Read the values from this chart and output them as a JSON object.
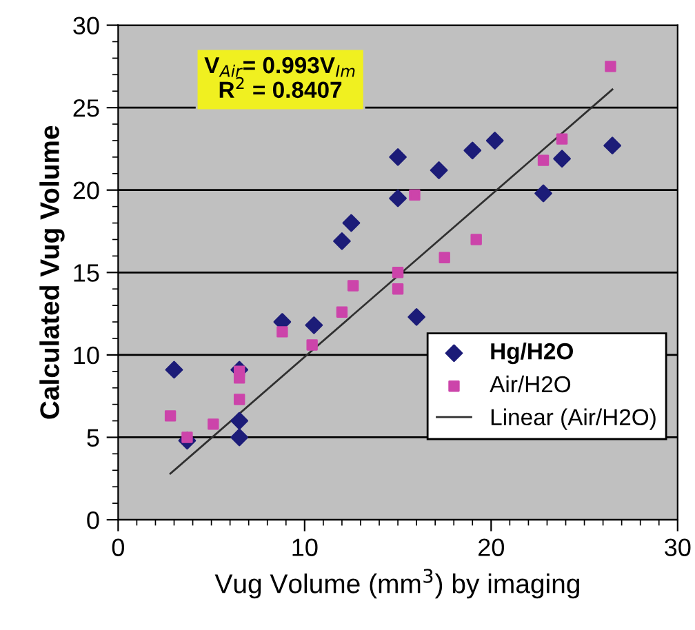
{
  "chart_data": {
    "type": "scatter",
    "xlabel": "Vug Volume (mm$^{3}$) by imaging",
    "ylabel": "Calculated Vug Volume",
    "xlim": [
      0,
      30
    ],
    "xticks": [
      0,
      10,
      20,
      30
    ],
    "ylim": [
      0,
      30
    ],
    "yticks": [
      0,
      5,
      10,
      15,
      20,
      25,
      30
    ],
    "grid": "y",
    "legend": "right",
    "annotations": [
      "V$_{Air}$= 0.993V$_{Im}$\nR$^{2}$ = 0.8407"
    ],
    "series": [
      {
        "name": "Hg/H2O",
        "color": "#1c1c78",
        "marker": "diamond",
        "x": [
          3,
          3.7,
          6.5,
          6.5,
          6.5,
          8.8,
          10.5,
          12,
          12.5,
          15,
          15,
          16,
          17.2,
          19,
          20.2,
          22.8,
          23.8,
          26.5
        ],
        "values": [
          9.1,
          4.8,
          6,
          5,
          9.1,
          12,
          11.8,
          16.9,
          18,
          22,
          19.5,
          12.3,
          21.2,
          22.4,
          23,
          19.8,
          21.9,
          22.7
        ]
      },
      {
        "name": "Air/H2O",
        "color": "#cc44aa",
        "marker": "square",
        "x": [
          2.8,
          3.7,
          5.1,
          6.5,
          6.5,
          6.5,
          8.8,
          10.4,
          12,
          12.6,
          15,
          15,
          15.9,
          17.5,
          19.2,
          22.8,
          23.8,
          26.4
        ],
        "values": [
          6.3,
          5,
          5.8,
          9,
          8.6,
          7.3,
          11.4,
          10.6,
          12.6,
          14.2,
          15,
          14,
          19.7,
          15.9,
          17,
          21.8,
          23.1,
          27.5
        ]
      },
      {
        "name": "Linear (Air/H2O)",
        "type": "line",
        "color": "#303030",
        "marker": "none",
        "x": [
          2.8,
          26.5
        ],
        "values": [
          2.8,
          26.1
        ]
      }
    ]
  }
}
